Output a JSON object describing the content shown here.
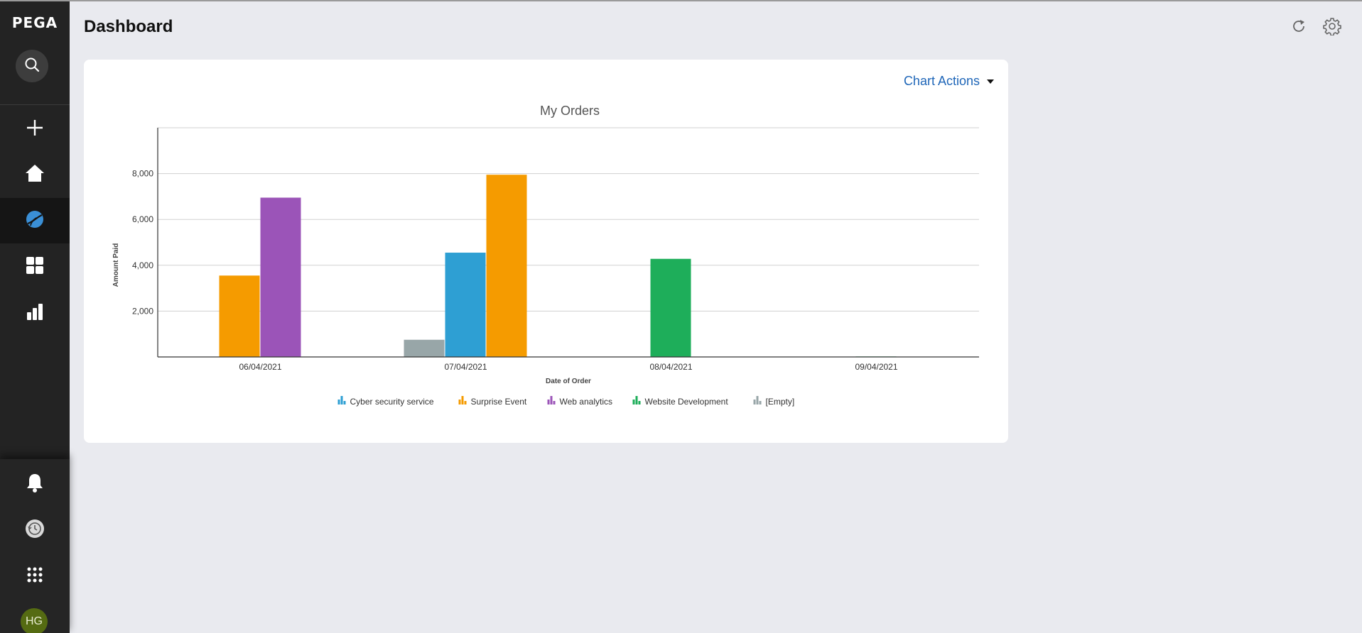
{
  "sidebar": {
    "logo": "PEGA",
    "items": [
      {
        "name": "search",
        "icon": "search-icon"
      },
      {
        "name": "create",
        "icon": "plus-icon"
      },
      {
        "name": "home",
        "icon": "home-icon"
      },
      {
        "name": "explore",
        "icon": "globe-icon",
        "active": true
      },
      {
        "name": "dashboard",
        "icon": "grid-icon"
      },
      {
        "name": "reports",
        "icon": "bar-chart-icon"
      }
    ],
    "bottom_items": [
      {
        "name": "notifications",
        "icon": "bell-icon"
      },
      {
        "name": "recents",
        "icon": "history-icon"
      },
      {
        "name": "apps",
        "icon": "apps-grid-icon"
      }
    ],
    "avatar_initials": "HG"
  },
  "header": {
    "title": "Dashboard",
    "actions": [
      {
        "name": "refresh",
        "icon": "refresh-icon"
      },
      {
        "name": "settings",
        "icon": "gear-icon"
      }
    ]
  },
  "card": {
    "chart_actions_label": "Chart Actions"
  },
  "colors": {
    "Cyber security service": "#2e9fd3",
    "Surprise Event": "#f59b00",
    "Web analytics": "#9b54b8",
    "Website Development": "#1eae5a",
    "[Empty]": "#98a6a8"
  },
  "chart_data": {
    "type": "bar",
    "title": "My Orders",
    "xlabel": "Date of Order",
    "ylabel": "Amount Paid",
    "categories": [
      "06/04/2021",
      "07/04/2021",
      "08/04/2021",
      "09/04/2021"
    ],
    "ylim": [
      0,
      10000
    ],
    "yticks": [
      2000,
      4000,
      6000,
      8000
    ],
    "ytick_labels": [
      "2,000",
      "4,000",
      "6,000",
      "8,000"
    ],
    "grid": true,
    "legend_position": "bottom",
    "series": [
      {
        "name": "Cyber security service",
        "values": [
          0,
          4550,
          0,
          0
        ]
      },
      {
        "name": "Surprise Event",
        "values": [
          3550,
          7950,
          0,
          0
        ]
      },
      {
        "name": "Web analytics",
        "values": [
          6950,
          0,
          0,
          0
        ]
      },
      {
        "name": "Website Development",
        "values": [
          0,
          0,
          4280,
          20
        ]
      },
      {
        "name": "[Empty]",
        "values": [
          0,
          750,
          0,
          0
        ]
      }
    ]
  }
}
